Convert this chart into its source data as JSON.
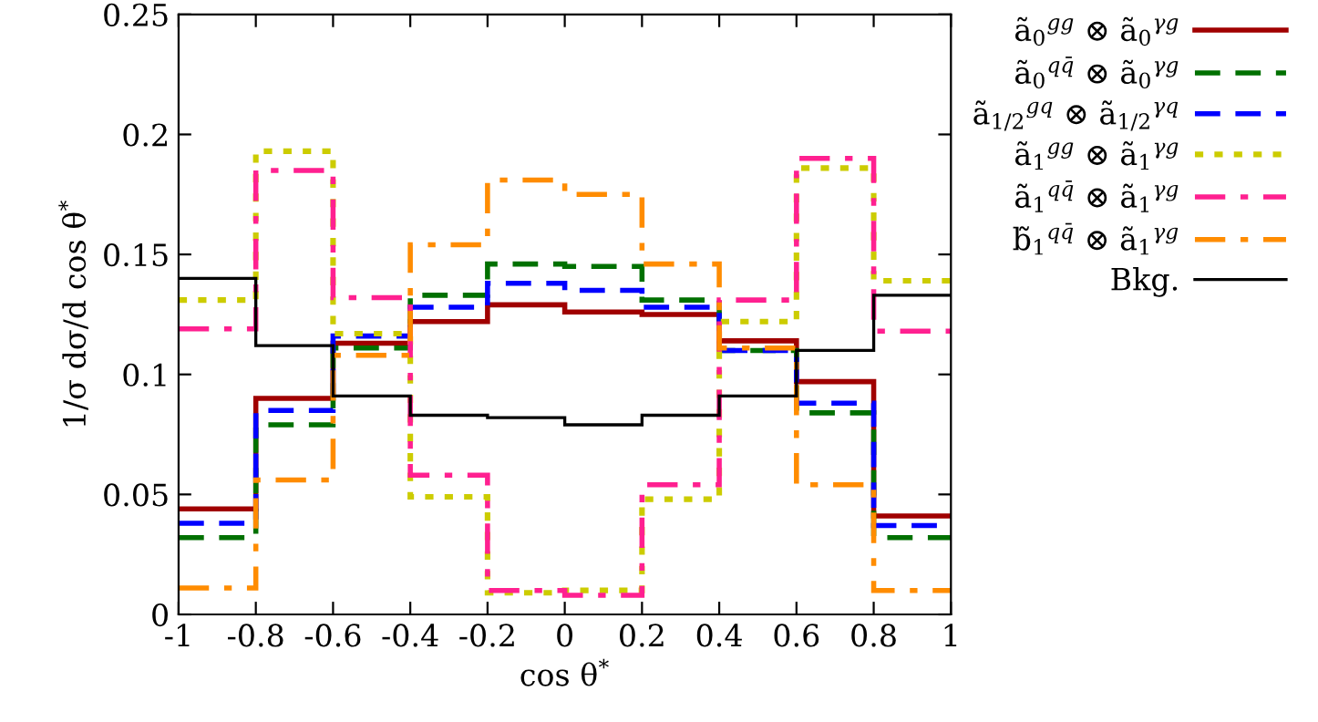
{
  "chart_data": {
    "type": "histogram",
    "xlabel": "cos θ$^{*}$",
    "ylabel": "1/σ dσ/d cos θ$^{*}$",
    "bins": [
      -1,
      -0.8,
      -0.6,
      -0.4,
      -0.2,
      0,
      0.2,
      0.4,
      0.6,
      0.8,
      1
    ],
    "series": [
      {
        "name": "ã$_{0}$$^{gg}$ ⊗ ã$_{0}$$^{γg}$",
        "color": "#a00000",
        "line_style": "solid",
        "values": [
          0.044,
          0.09,
          0.113,
          0.122,
          0.129,
          0.126,
          0.125,
          0.114,
          0.097,
          0.041
        ]
      },
      {
        "name": "ã$_{0}$$^{qq̄}$ ⊗ ã$_{0}$$^{γg}$",
        "color": "#007000",
        "line_style": "dashed",
        "values": [
          0.032,
          0.079,
          0.111,
          0.133,
          0.146,
          0.145,
          0.131,
          0.11,
          0.084,
          0.032
        ]
      },
      {
        "name": "ã$_{1/2}$$^{gq}$ ⊗ ã$_{1/2}$$^{γq}$",
        "color": "#0000ff",
        "line_style": "dashed",
        "values": [
          0.038,
          0.085,
          0.116,
          0.128,
          0.138,
          0.135,
          0.128,
          0.11,
          0.088,
          0.037
        ]
      },
      {
        "name": "ã$_{1}$$^{gg}$ ⊗ ã$_{1}$$^{γg}$",
        "color": "#cccc00",
        "line_style": "dotted",
        "values": [
          0.131,
          0.193,
          0.117,
          0.049,
          0.009,
          0.01,
          0.048,
          0.122,
          0.186,
          0.139
        ]
      },
      {
        "name": "ã$_{1}$$^{qq̄}$ ⊗ ã$_{1}$$^{γg}$",
        "color": "#ff2090",
        "line_style": "dashdot",
        "values": [
          0.119,
          0.185,
          0.132,
          0.058,
          0.01,
          0.008,
          0.054,
          0.131,
          0.19,
          0.118
        ]
      },
      {
        "name": "b̃$_{1}$$^{qq̄}$ ⊗ ã$_{1}$$^{γg}$",
        "color": "#ff8c00",
        "line_style": "dashdot",
        "values": [
          0.011,
          0.056,
          0.108,
          0.154,
          0.181,
          0.175,
          0.146,
          0.111,
          0.054,
          0.01
        ]
      },
      {
        "name": "Bkg.",
        "color": "#000000",
        "line_style": "solid",
        "values": [
          0.14,
          0.112,
          0.091,
          0.083,
          0.082,
          0.079,
          0.083,
          0.091,
          0.11,
          0.133
        ]
      }
    ],
    "xlim": [
      -1,
      1
    ],
    "ylim": [
      0,
      0.25
    ],
    "xticks": [
      -1,
      -0.8,
      -0.6,
      -0.4,
      -0.2,
      0,
      0.2,
      0.4,
      0.6,
      0.8,
      1
    ],
    "yticks": [
      0,
      0.05,
      0.1,
      0.15,
      0.2,
      0.25
    ],
    "grid": false,
    "legend": "right"
  }
}
